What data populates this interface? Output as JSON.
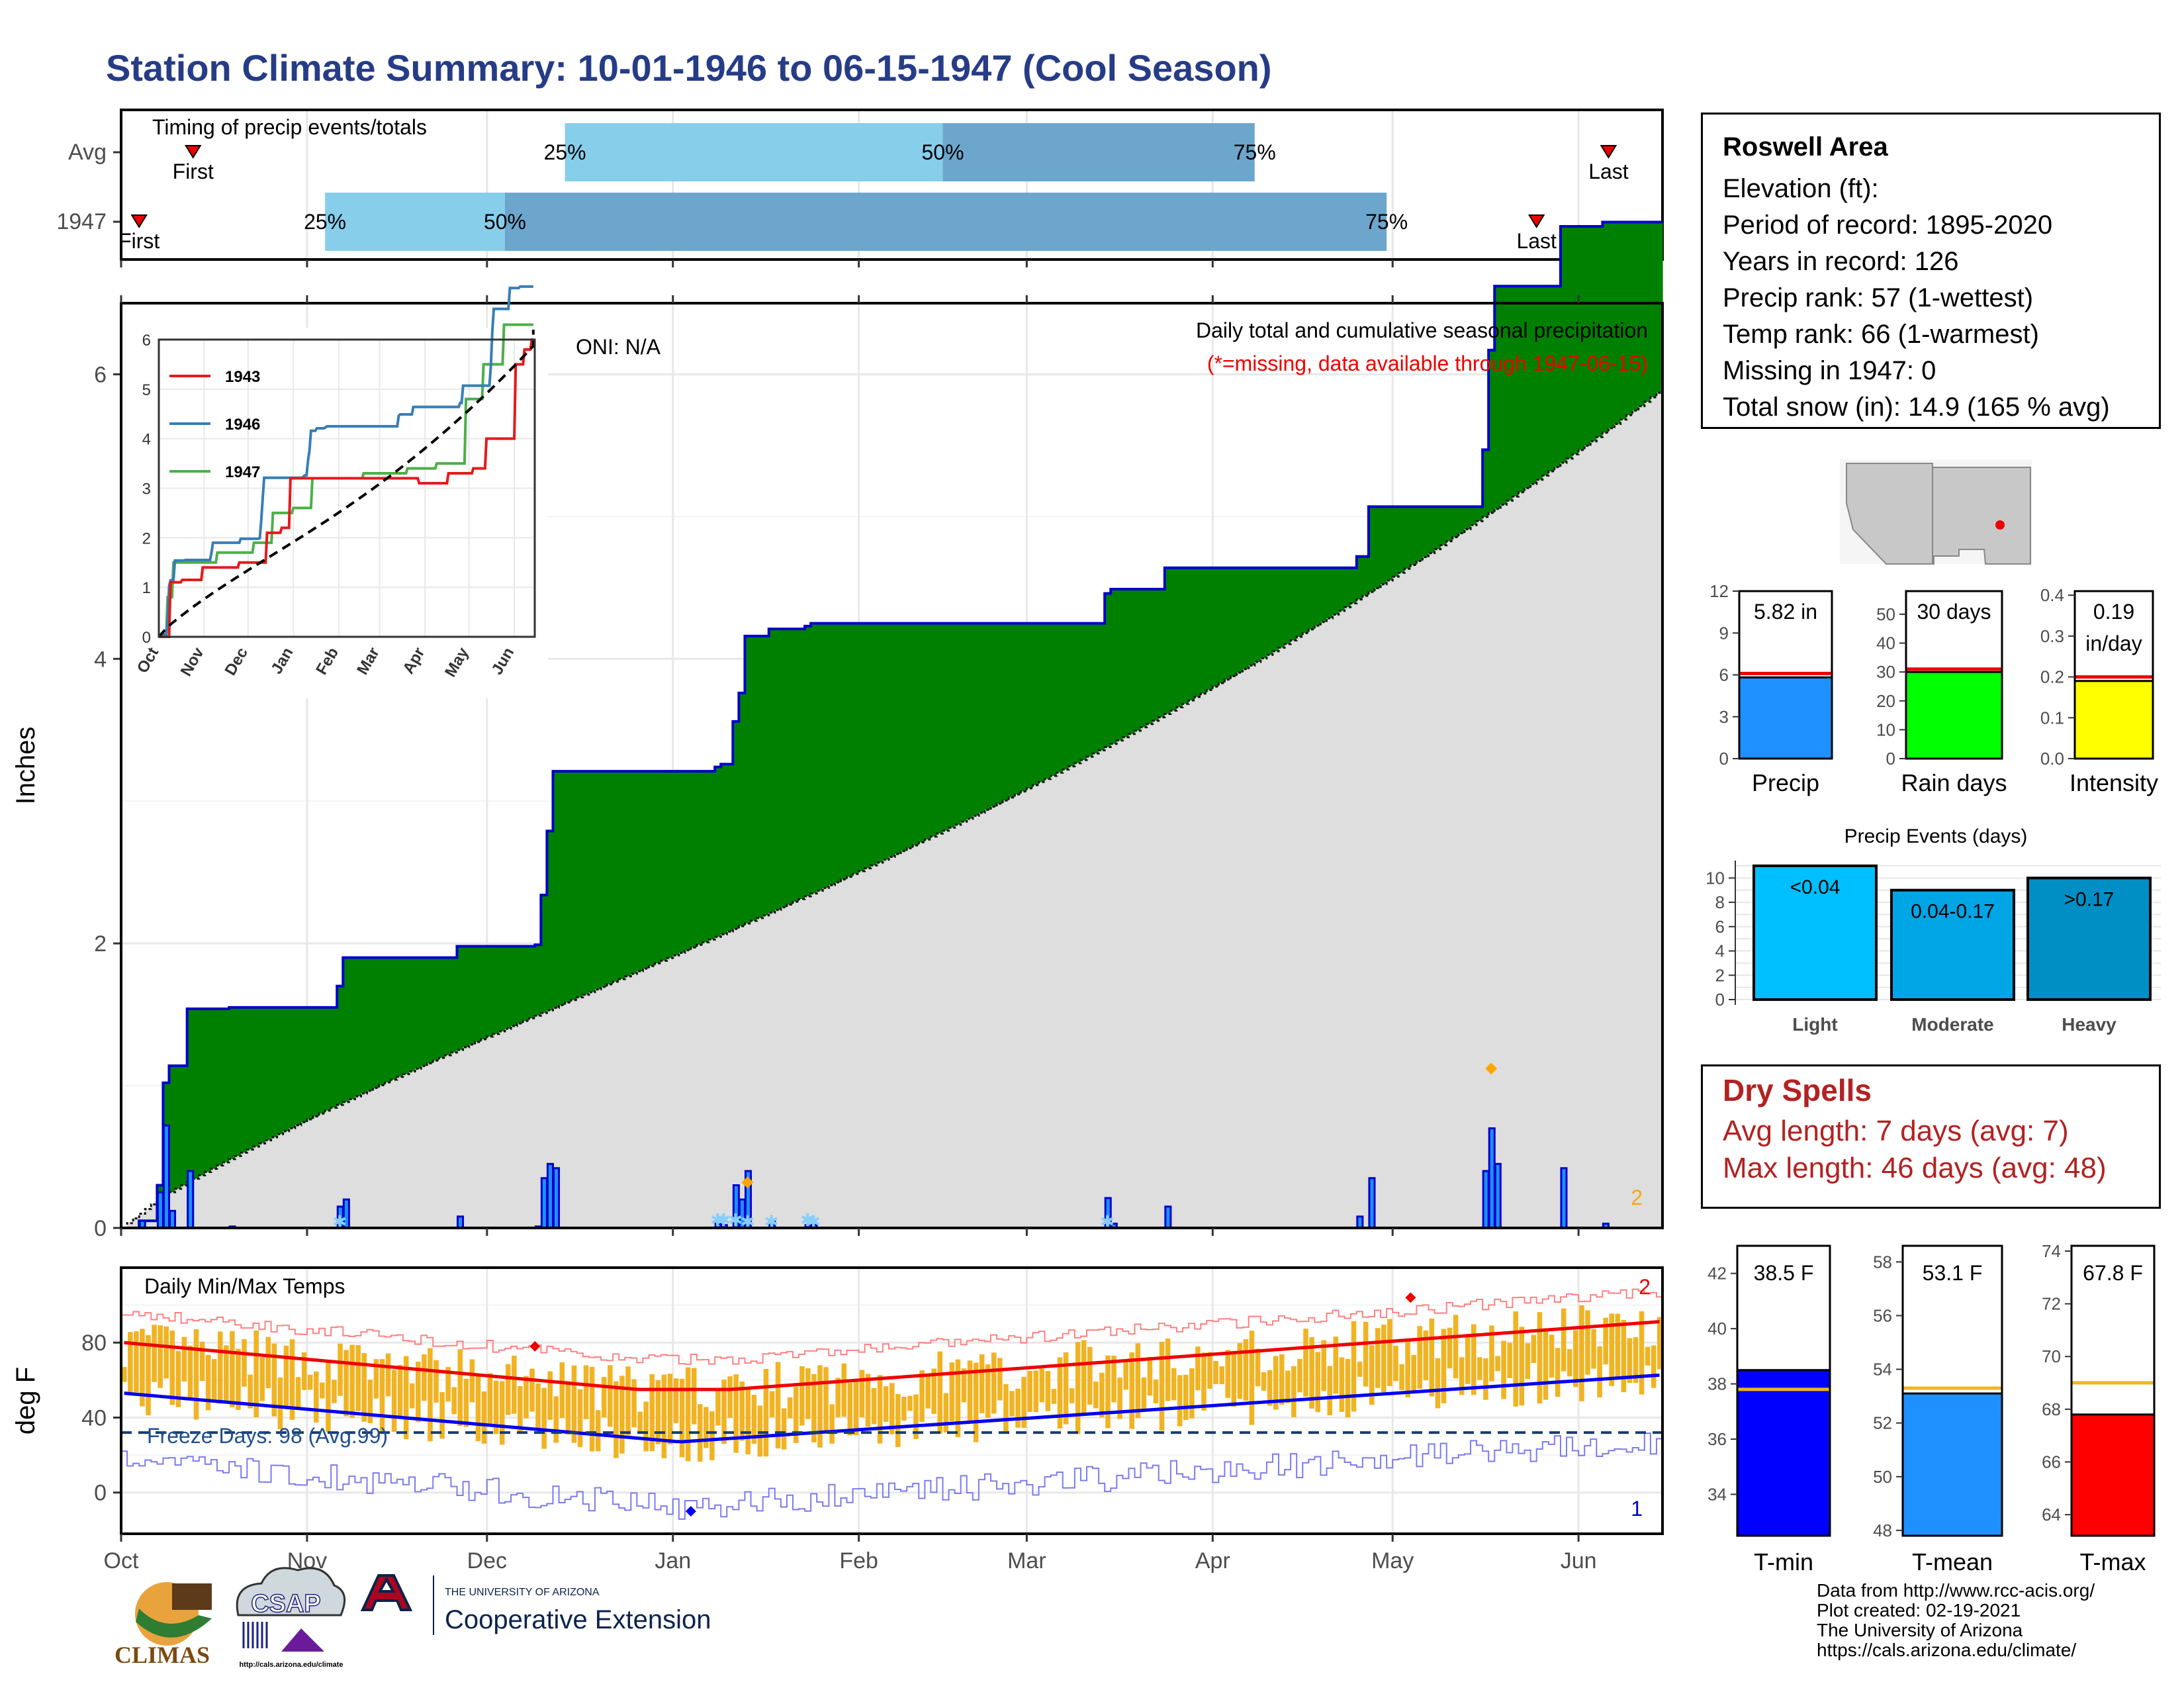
{
  "title": "Station Climate Summary: 10-01-1946 to 06-15-1947 (Cool Season)",
  "timing": {
    "label": "Timing of precip events/totals",
    "rows": [
      {
        "name": "Avg",
        "first": "1946-10-13",
        "q25": "1946-12-14",
        "q50": "1947-02-15",
        "q75": "1947-04-08",
        "last": "1947-06-06"
      },
      {
        "name": "1947",
        "first": "1946-10-04",
        "q25": "1946-11-04",
        "q50": "1946-12-04",
        "q75": "1947-04-30",
        "last": "1947-05-25"
      }
    ],
    "first_label": "First",
    "last_label": "Last",
    "q25_label": "25%",
    "q50_label": "50%",
    "q75_label": "75%"
  },
  "precip_chart": {
    "ylabel": "Inches",
    "oni": "ONI: N/A",
    "title": "Daily total and cumulative seasonal precipitation",
    "missing_note": "(*=missing, data available through 1947-06-15)",
    "missing_count": "2",
    "y_ticks": [
      "0",
      "2",
      "4",
      "6"
    ]
  },
  "inset": {
    "y_ticks": [
      "0",
      "1",
      "2",
      "3",
      "4",
      "5",
      "6"
    ],
    "x_ticks": [
      "Oct",
      "Nov",
      "Dec",
      "Jan",
      "Feb",
      "Mar",
      "Apr",
      "May",
      "Jun"
    ],
    "legend": [
      {
        "name": "1943",
        "color": "#e41a1c"
      },
      {
        "name": "1946",
        "color": "#377eb8"
      },
      {
        "name": "1947",
        "color": "#4daf4a"
      }
    ]
  },
  "temp_chart": {
    "label": "Daily Min/Max Temps",
    "ylabel": "deg F",
    "freeze": "Freeze Days: 98 (Avg:99)",
    "y_ticks": [
      "0",
      "40",
      "80"
    ],
    "count_high": "2",
    "count_low": "1"
  },
  "x_months": [
    "Oct",
    "Nov",
    "Dec",
    "Jan",
    "Feb",
    "Mar",
    "Apr",
    "May",
    "Jun"
  ],
  "station": {
    "name": "Roswell Area",
    "elevation": "Elevation (ft):",
    "period": "Period of record: 1895-2020",
    "years": "Years in record: 126",
    "precip_rank": "Precip rank: 57 (1-wettest)",
    "temp_rank": "Temp rank: 66 (1-warmest)",
    "missing": "Missing in 1947: 0",
    "snow": "Total snow (in): 14.9 (165 % avg)"
  },
  "summary_bars": [
    {
      "label": "Precip",
      "value_text": "5.82 in",
      "value": 5.82,
      "avg": 6.1,
      "ymax": 12,
      "ticks": [
        "0",
        "3",
        "6",
        "9",
        "12"
      ],
      "color": "#1e90ff"
    },
    {
      "label": "Rain days",
      "value_text": "30 days",
      "value": 30,
      "avg": 31,
      "ymax": 58,
      "ticks": [
        "0",
        "10",
        "20",
        "30",
        "40",
        "50"
      ],
      "color": "#00ff00"
    },
    {
      "label": "Intensity",
      "value_text": "0.19",
      "value_text2": "in/day",
      "value": 0.19,
      "avg": 0.2,
      "ymax": 0.41,
      "ticks": [
        "0.0",
        "0.1",
        "0.2",
        "0.3",
        "0.4"
      ],
      "color": "#ffff00"
    }
  ],
  "events": {
    "title": "Precip Events (days)",
    "ticks": [
      "0",
      "2",
      "4",
      "6",
      "8",
      "10"
    ],
    "bars": [
      {
        "cat": "Light",
        "label": "<0.04",
        "value": 11,
        "color": "#00bfff"
      },
      {
        "cat": "Moderate",
        "label": "0.04-0.17",
        "value": 9,
        "color": "#00a5e6"
      },
      {
        "cat": "Heavy",
        "label": ">0.17",
        "value": 10,
        "color": "#008fc4"
      }
    ]
  },
  "dry_spells": {
    "title": "Dry Spells",
    "avg": "Avg length: 7 days (avg: 7)",
    "max": "Max length: 46 days (avg: 48)"
  },
  "temp_bars": [
    {
      "label": "T-min",
      "value_text": "38.5 F",
      "value": 38.5,
      "avg": 37.8,
      "min": 32.5,
      "max": 43.0,
      "ticks": [
        "34",
        "36",
        "38",
        "40",
        "42"
      ],
      "tickvals": [
        34,
        36,
        38,
        40,
        42
      ],
      "color": "#0000ff"
    },
    {
      "label": "T-mean",
      "value_text": "53.1 F",
      "value": 53.1,
      "avg": 53.3,
      "min": 47.8,
      "max": 58.6,
      "ticks": [
        "48",
        "50",
        "52",
        "54",
        "56",
        "58"
      ],
      "tickvals": [
        48,
        50,
        52,
        54,
        56,
        58
      ],
      "color": "#1e90ff"
    },
    {
      "label": "T-max",
      "value_text": "67.8 F",
      "value": 67.8,
      "avg": 69.0,
      "min": 63.2,
      "max": 74.2,
      "ticks": [
        "64",
        "66",
        "68",
        "70",
        "72",
        "74"
      ],
      "tickvals": [
        64,
        66,
        68,
        70,
        72,
        74
      ],
      "color": "#ff0000"
    }
  ],
  "credits": [
    "Data from http://www.rcc-acis.org/",
    "Plot created: 02-19-2021",
    "The University of Arizona",
    "https://cals.arizona.edu/climate/"
  ],
  "logos": {
    "climas": "CLIMAS",
    "csap": "CSAP",
    "csap_url": "http://cals.arizona.edu/climate",
    "ua_small": "THE UNIVERSITY OF ARIZONA",
    "ua_big": "Cooperative Extension"
  }
}
